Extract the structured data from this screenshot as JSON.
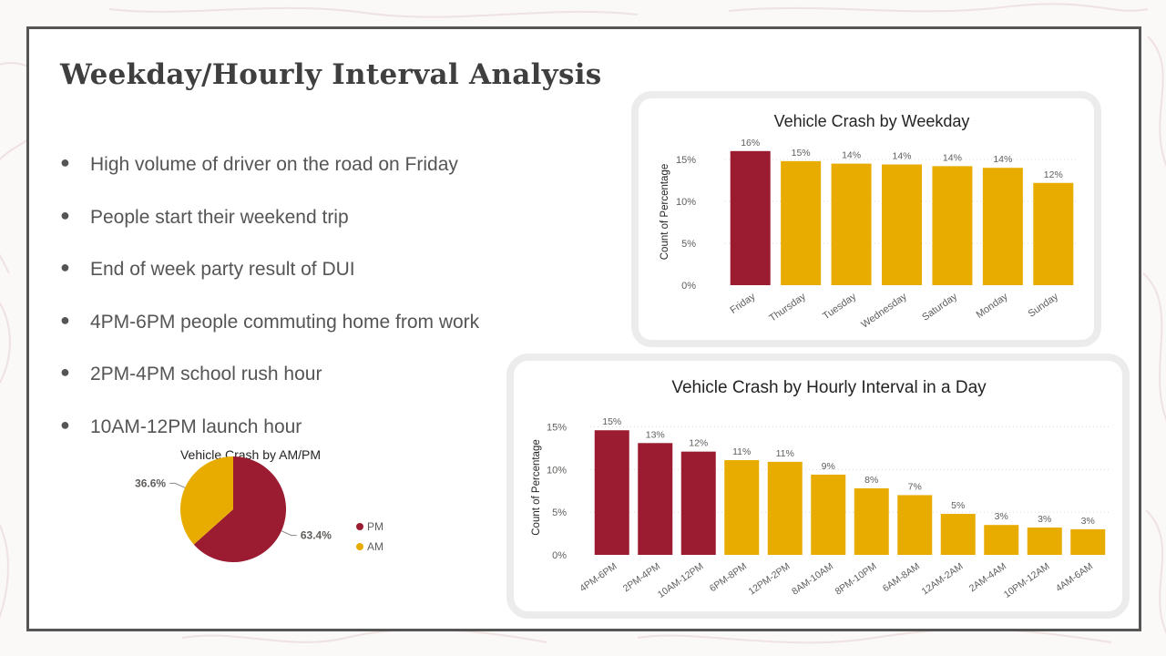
{
  "slide": {
    "title": "Weekday/Hourly Interval Analysis",
    "bullets": [
      "High volume of driver on the road on Friday",
      "People start their weekend trip",
      "End of week party result of DUI",
      "4PM-6PM people commuting home from work",
      "2PM-4PM school rush hour",
      "10AM-12PM launch hour"
    ],
    "bullet_symbol": "●"
  },
  "colors": {
    "highlight": "#9b1c31",
    "normal": "#e8ac00",
    "am": "#e8ac00",
    "pm": "#9b1c31"
  },
  "chart_data": [
    {
      "type": "bar",
      "title": "Vehicle Crash by Weekday",
      "ylabel": "Count of Percentage",
      "xlabel": "",
      "categories": [
        "Friday",
        "Thursday",
        "Tuesday",
        "Wednesday",
        "Saturday",
        "Monday",
        "Sunday"
      ],
      "values": [
        16.0,
        14.8,
        14.5,
        14.4,
        14.2,
        14.0,
        12.2
      ],
      "data_labels": [
        "16%",
        "15%",
        "14%",
        "14%",
        "14%",
        "14%",
        "12%"
      ],
      "highlight_count": 1,
      "yticks": [
        "0%",
        "5%",
        "10%",
        "15%"
      ],
      "ytick_values": [
        0,
        5,
        10,
        15
      ],
      "ylim": [
        0,
        17.5
      ],
      "grid": true
    },
    {
      "type": "bar",
      "title": "Vehicle Crash by Hourly Interval in a Day",
      "ylabel": "Count of Percentage",
      "xlabel": "",
      "categories": [
        "4PM-6PM",
        "2PM-4PM",
        "10AM-12PM",
        "6PM-8PM",
        "12PM-2PM",
        "8AM-10AM",
        "8PM-10PM",
        "6AM-8AM",
        "12AM-2AM",
        "2AM-4AM",
        "10PM-12AM",
        "4AM-6AM"
      ],
      "values": [
        14.6,
        13.1,
        12.1,
        11.1,
        10.9,
        9.4,
        7.8,
        7.0,
        4.8,
        3.5,
        3.2,
        3.0
      ],
      "data_labels": [
        "15%",
        "13%",
        "12%",
        "11%",
        "11%",
        "9%",
        "8%",
        "7%",
        "5%",
        "3%",
        "3%",
        "3%"
      ],
      "highlight_count": 3,
      "yticks": [
        "0%",
        "5%",
        "10%",
        "15%"
      ],
      "ytick_values": [
        0,
        5,
        10,
        15
      ],
      "ylim": [
        0,
        15.8
      ],
      "grid": true
    },
    {
      "type": "pie",
      "title": "Vehicle Crash by AM/PM",
      "slices": [
        {
          "name": "PM",
          "value": 63.4,
          "label": "63.4%"
        },
        {
          "name": "AM",
          "value": 36.6,
          "label": "36.6%"
        }
      ],
      "legend": [
        "PM",
        "AM"
      ],
      "legend_position": "right"
    }
  ]
}
